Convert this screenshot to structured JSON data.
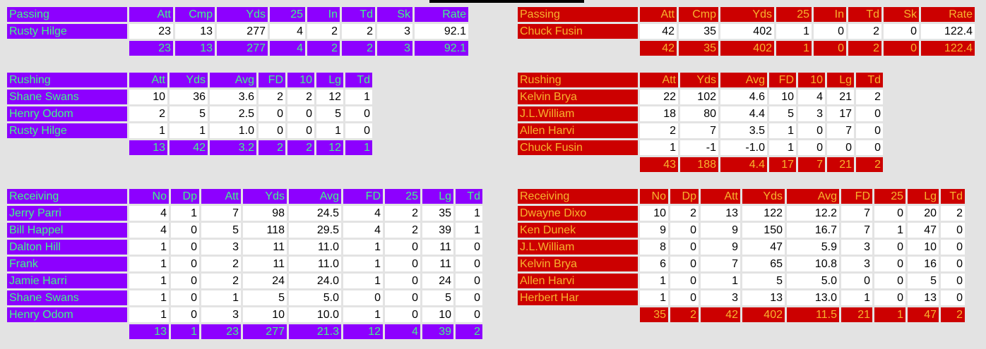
{
  "left": {
    "passing": {
      "cols": [
        "Passing",
        "Att",
        "Cmp",
        "Yds",
        "25",
        "In",
        "Td",
        "Sk",
        "Rate"
      ],
      "rows": [
        [
          "Rusty Hilge",
          "23",
          "13",
          "277",
          "4",
          "2",
          "2",
          "3",
          "92.1"
        ]
      ],
      "total": [
        "23",
        "13",
        "277",
        "4",
        "2",
        "2",
        "3",
        "92.1"
      ]
    },
    "rushing": {
      "cols": [
        "Rushing",
        "Att",
        "Yds",
        "Avg",
        "FD",
        "10",
        "Lg",
        "Td"
      ],
      "rows": [
        [
          "Shane Swans",
          "10",
          "36",
          "3.6",
          "2",
          "2",
          "12",
          "1"
        ],
        [
          "Henry Odom",
          "2",
          "5",
          "2.5",
          "0",
          "0",
          "5",
          "0"
        ],
        [
          "Rusty Hilge",
          "1",
          "1",
          "1.0",
          "0",
          "0",
          "1",
          "0"
        ]
      ],
      "total": [
        "13",
        "42",
        "3.2",
        "2",
        "2",
        "12",
        "1"
      ]
    },
    "receiving": {
      "cols": [
        "Receiving",
        "No",
        "Dp",
        "Att",
        "Yds",
        "Avg",
        "FD",
        "25",
        "Lg",
        "Td"
      ],
      "rows": [
        [
          "Jerry Parri",
          "4",
          "1",
          "7",
          "98",
          "24.5",
          "4",
          "2",
          "35",
          "1"
        ],
        [
          "Bill Happel",
          "4",
          "0",
          "5",
          "118",
          "29.5",
          "4",
          "2",
          "39",
          "1"
        ],
        [
          "Dalton Hill",
          "1",
          "0",
          "3",
          "11",
          "11.0",
          "1",
          "0",
          "11",
          "0"
        ],
        [
          "Frank",
          "1",
          "0",
          "2",
          "11",
          "11.0",
          "1",
          "0",
          "11",
          "0"
        ],
        [
          "Jamie Harri",
          "1",
          "0",
          "2",
          "24",
          "24.0",
          "1",
          "0",
          "24",
          "0"
        ],
        [
          "Shane Swans",
          "1",
          "0",
          "1",
          "5",
          "5.0",
          "0",
          "0",
          "5",
          "0"
        ],
        [
          "Henry Odom",
          "1",
          "0",
          "3",
          "10",
          "10.0",
          "1",
          "0",
          "10",
          "0"
        ]
      ],
      "total": [
        "13",
        "1",
        "23",
        "277",
        "21.3",
        "12",
        "4",
        "39",
        "2"
      ]
    }
  },
  "right": {
    "passing": {
      "cols": [
        "Passing",
        "Att",
        "Cmp",
        "Yds",
        "25",
        "In",
        "Td",
        "Sk",
        "Rate"
      ],
      "rows": [
        [
          "Chuck Fusin",
          "42",
          "35",
          "402",
          "1",
          "0",
          "2",
          "0",
          "122.4"
        ]
      ],
      "total": [
        "42",
        "35",
        "402",
        "1",
        "0",
        "2",
        "0",
        "122.4"
      ]
    },
    "rushing": {
      "cols": [
        "Rushing",
        "Att",
        "Yds",
        "Avg",
        "FD",
        "10",
        "Lg",
        "Td"
      ],
      "rows": [
        [
          "Kelvin Brya",
          "22",
          "102",
          "4.6",
          "10",
          "4",
          "21",
          "2"
        ],
        [
          "J.L.William",
          "18",
          "80",
          "4.4",
          "5",
          "3",
          "17",
          "0"
        ],
        [
          "Allen Harvi",
          "2",
          "7",
          "3.5",
          "1",
          "0",
          "7",
          "0"
        ],
        [
          "Chuck Fusin",
          "1",
          "-1",
          "-1.0",
          "1",
          "0",
          "0",
          "0"
        ]
      ],
      "total": [
        "43",
        "188",
        "4.4",
        "17",
        "7",
        "21",
        "2"
      ]
    },
    "receiving": {
      "cols": [
        "Receiving",
        "No",
        "Dp",
        "Att",
        "Yds",
        "Avg",
        "FD",
        "25",
        "Lg",
        "Td"
      ],
      "rows": [
        [
          "Dwayne Dixo",
          "10",
          "2",
          "13",
          "122",
          "12.2",
          "7",
          "0",
          "20",
          "2"
        ],
        [
          "Ken Dunek",
          "9",
          "0",
          "9",
          "150",
          "16.7",
          "7",
          "1",
          "47",
          "0"
        ],
        [
          "J.L.William",
          "8",
          "0",
          "9",
          "47",
          "5.9",
          "3",
          "0",
          "10",
          "0"
        ],
        [
          "Kelvin Brya",
          "6",
          "0",
          "7",
          "65",
          "10.8",
          "3",
          "0",
          "16",
          "0"
        ],
        [
          "Allen Harvi",
          "1",
          "0",
          "1",
          "5",
          "5.0",
          "0",
          "0",
          "5",
          "0"
        ],
        [
          "Herbert Har",
          "1",
          "0",
          "3",
          "13",
          "13.0",
          "1",
          "0",
          "13",
          "0"
        ]
      ],
      "total": [
        "35",
        "2",
        "42",
        "402",
        "11.5",
        "21",
        "1",
        "47",
        "2"
      ]
    }
  }
}
